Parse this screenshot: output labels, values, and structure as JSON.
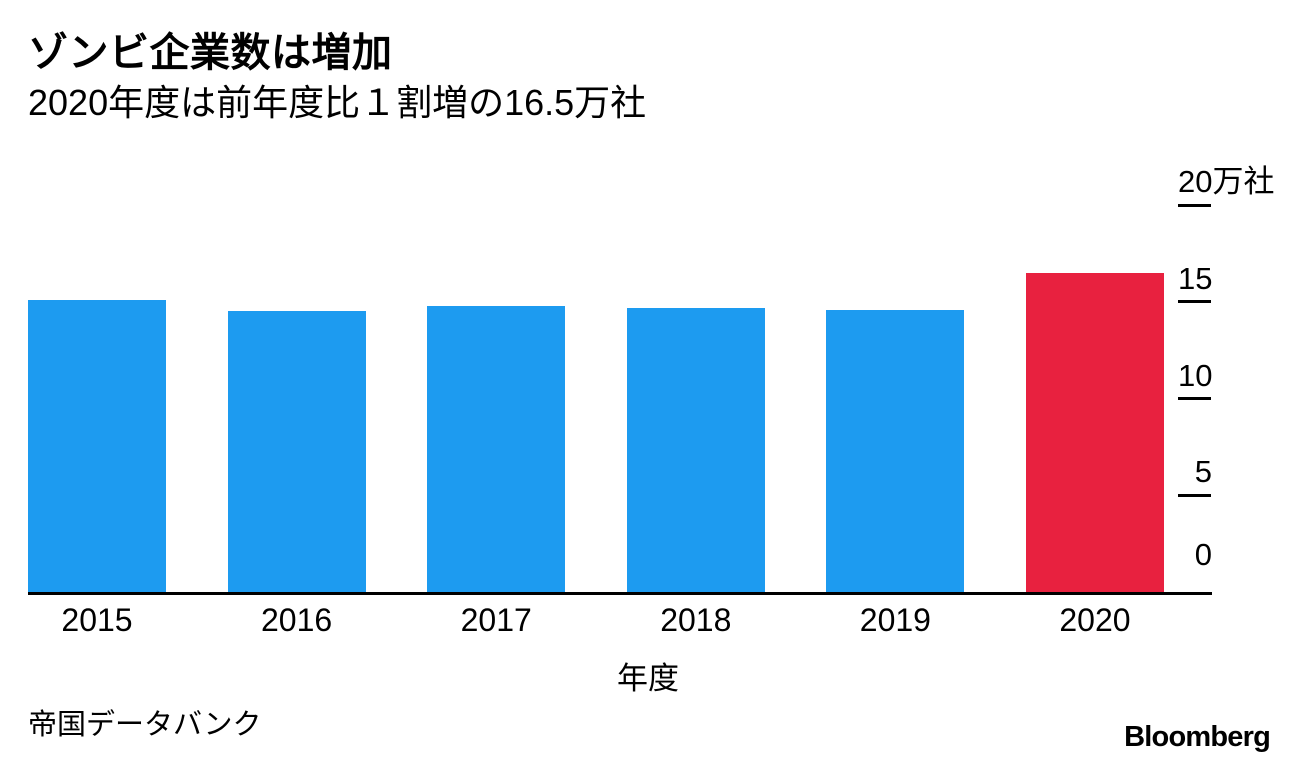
{
  "chart_data": {
    "type": "bar",
    "title": "ゾンビ企業数は増加",
    "subtitle": "2020年度は前年度比１割増の16.5万社",
    "categories": [
      "2015",
      "2016",
      "2017",
      "2018",
      "2019",
      "2020"
    ],
    "values": [
      15.1,
      14.5,
      14.8,
      14.7,
      14.6,
      16.5
    ],
    "unit": "万社",
    "xlabel": "年度",
    "ylabel": "",
    "ylim": [
      0,
      20
    ],
    "yticks": [
      {
        "value": 0,
        "label": "0",
        "dash": false,
        "wide": false
      },
      {
        "value": 5,
        "label": "5",
        "dash": true,
        "wide": false
      },
      {
        "value": 10,
        "label": "10",
        "dash": true,
        "wide": false
      },
      {
        "value": 15,
        "label": "15",
        "dash": true,
        "wide": false
      },
      {
        "value": 20,
        "label": "20万社",
        "dash": true,
        "wide": true
      }
    ],
    "yaxis_position": "right",
    "grid": false,
    "legend": "none",
    "highlight_category": "2020",
    "colors": {
      "bar_default": "#1d9bf0",
      "bar_highlight": "#e8213f",
      "axis": "#000000",
      "text": "#000000",
      "background": "#ffffff"
    }
  },
  "footer": {
    "source": "帝国データバンク",
    "brand": "Bloomberg"
  }
}
